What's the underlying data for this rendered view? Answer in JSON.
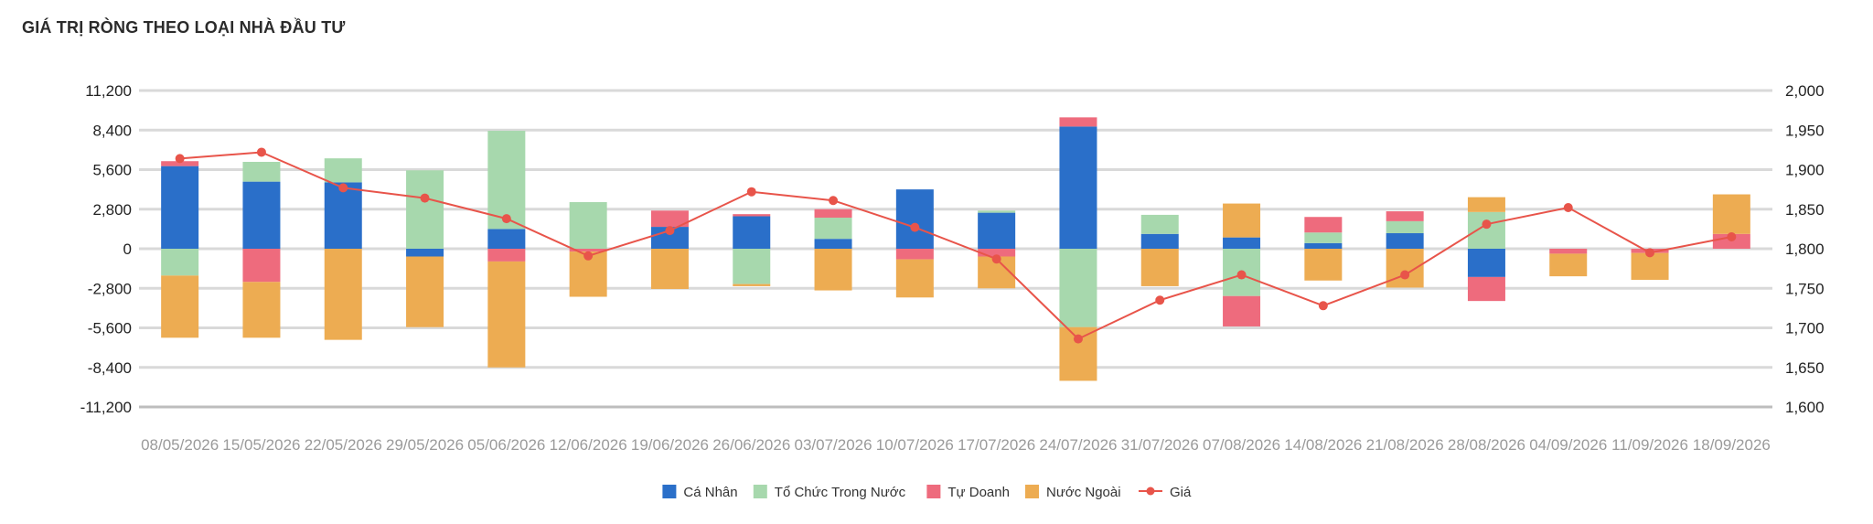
{
  "chart_data": {
    "type": "bar",
    "title": "GIÁ TRỊ RÒNG THEO LOẠI NHÀ ĐẦU TƯ",
    "stacked": true,
    "categories": [
      "08/05/2026",
      "15/05/2026",
      "22/05/2026",
      "29/05/2026",
      "05/06/2026",
      "12/06/2026",
      "19/06/2026",
      "26/06/2026",
      "03/07/2026",
      "10/07/2026",
      "17/07/2026",
      "24/07/2026",
      "31/07/2026",
      "07/08/2026",
      "14/08/2026",
      "21/08/2026",
      "28/08/2026",
      "04/09/2026",
      "11/09/2026",
      "18/09/2026"
    ],
    "series": [
      {
        "name": "Cá Nhân",
        "color": "#2a6fc9",
        "values": [
          5850,
          4750,
          4700,
          -550,
          1400,
          0,
          1550,
          2300,
          700,
          4200,
          2550,
          8650,
          1050,
          800,
          400,
          1100,
          -2000,
          0,
          0,
          0
        ]
      },
      {
        "name": "Tổ Chức Trong Nước",
        "color": "#a7d8ad",
        "values": [
          -1900,
          1400,
          1700,
          5550,
          6950,
          3300,
          0,
          -2500,
          1500,
          0,
          150,
          -5550,
          1350,
          -3350,
          750,
          850,
          2600,
          0,
          0,
          0
        ]
      },
      {
        "name": "Tự Doanh",
        "color": "#ee6b7d",
        "values": [
          350,
          -2350,
          0,
          0,
          -900,
          -200,
          1150,
          150,
          600,
          -750,
          -550,
          650,
          0,
          -2150,
          1100,
          700,
          -1700,
          -350,
          -300,
          1050
        ]
      },
      {
        "name": "Nước Ngoài",
        "color": "#edac52",
        "values": [
          -4400,
          -3950,
          -6450,
          -5000,
          -7500,
          -3200,
          -2850,
          -150,
          -2950,
          -2700,
          -2250,
          -3800,
          -2650,
          2400,
          -2250,
          -2750,
          1050,
          -1600,
          -1900,
          2800
        ]
      }
    ],
    "line_series": {
      "name": "Giá",
      "color": "#e8544a",
      "axis": "right",
      "values": [
        1914,
        1922,
        1877,
        1864,
        1838,
        1791,
        1823,
        1872,
        1861,
        1827,
        1787,
        1686,
        1735,
        1767,
        1728,
        1767,
        1831,
        1852,
        1795,
        1815
      ]
    },
    "ylim_left": [
      -11200,
      11200
    ],
    "yticks_left": [
      "11,200",
      "8,400",
      "5,600",
      "2,800",
      "0",
      "-2,800",
      "-5,600",
      "-8,400",
      "-11,200"
    ],
    "ylim_right": [
      1600,
      2000
    ],
    "yticks_right": [
      "2,000",
      "1,950",
      "1,900",
      "1,850",
      "1,800",
      "1,750",
      "1,700",
      "1,650",
      "1,600"
    ],
    "grid": true,
    "legend_position": "bottom"
  }
}
